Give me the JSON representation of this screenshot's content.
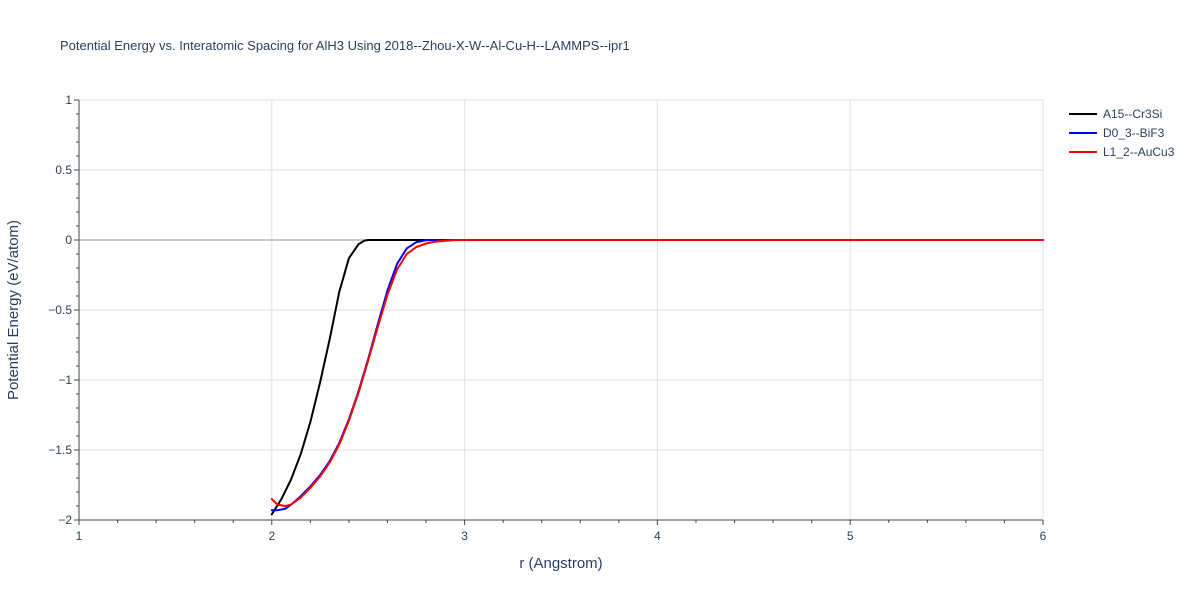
{
  "chart_data": {
    "type": "line",
    "title": "Potential Energy vs. Interatomic Spacing for AlH3 Using 2018--Zhou-X-W--Al-Cu-H--LAMMPS--ipr1",
    "xlabel": "r (Angstrom)",
    "ylabel": "Potential Energy (eV/atom)",
    "xlim": [
      1,
      6
    ],
    "ylim": [
      -2,
      1
    ],
    "x_ticks": [
      1,
      2,
      3,
      4,
      5,
      6
    ],
    "x_tick_labels": [
      "1",
      "2",
      "3",
      "4",
      "5",
      "6"
    ],
    "y_ticks": [
      1,
      0.5,
      0,
      -0.5,
      -1,
      -1.5,
      -2
    ],
    "y_tick_labels": [
      "1",
      "0.5",
      "0",
      "−0.5",
      "−1",
      "−1.5",
      "−2"
    ],
    "grid": true,
    "legend_position": "top-right",
    "series": [
      {
        "name": "A15--Cr3Si",
        "color": "#000000",
        "x": [
          2.0,
          2.05,
          2.1,
          2.15,
          2.2,
          2.25,
          2.3,
          2.35,
          2.4,
          2.45,
          2.48,
          2.5,
          2.6,
          2.8,
          3.0,
          4.0,
          5.0,
          6.0
        ],
        "y": [
          -1.96,
          -1.85,
          -1.71,
          -1.53,
          -1.3,
          -1.02,
          -0.71,
          -0.37,
          -0.13,
          -0.03,
          -0.005,
          0.0,
          0.0,
          0.0,
          0.0,
          0.0,
          0.0,
          0.0
        ]
      },
      {
        "name": "D0_3--BiF3",
        "color": "#0000ff",
        "x": [
          2.0,
          2.03,
          2.07,
          2.1,
          2.15,
          2.2,
          2.25,
          2.3,
          2.35,
          2.4,
          2.45,
          2.5,
          2.55,
          2.6,
          2.65,
          2.7,
          2.75,
          2.8,
          2.85,
          2.9,
          3.0,
          4.0,
          5.0,
          6.0
        ],
        "y": [
          -1.93,
          -1.93,
          -1.92,
          -1.89,
          -1.83,
          -1.76,
          -1.68,
          -1.58,
          -1.45,
          -1.28,
          -1.08,
          -0.85,
          -0.6,
          -0.36,
          -0.17,
          -0.06,
          -0.015,
          -0.002,
          0.0,
          0.0,
          0.0,
          0.0,
          0.0,
          0.0
        ]
      },
      {
        "name": "L1_2--AuCu3",
        "color": "#ff0000",
        "x": [
          2.0,
          2.03,
          2.07,
          2.1,
          2.15,
          2.2,
          2.25,
          2.3,
          2.35,
          2.4,
          2.45,
          2.5,
          2.55,
          2.6,
          2.65,
          2.7,
          2.75,
          2.8,
          2.85,
          2.9,
          2.95,
          3.0,
          4.0,
          5.0,
          6.0
        ],
        "y": [
          -1.85,
          -1.89,
          -1.9,
          -1.89,
          -1.84,
          -1.77,
          -1.69,
          -1.59,
          -1.46,
          -1.29,
          -1.09,
          -0.86,
          -0.62,
          -0.39,
          -0.21,
          -0.1,
          -0.05,
          -0.025,
          -0.012,
          -0.005,
          -0.001,
          0.0,
          0.0,
          0.0,
          0.0
        ]
      }
    ]
  }
}
